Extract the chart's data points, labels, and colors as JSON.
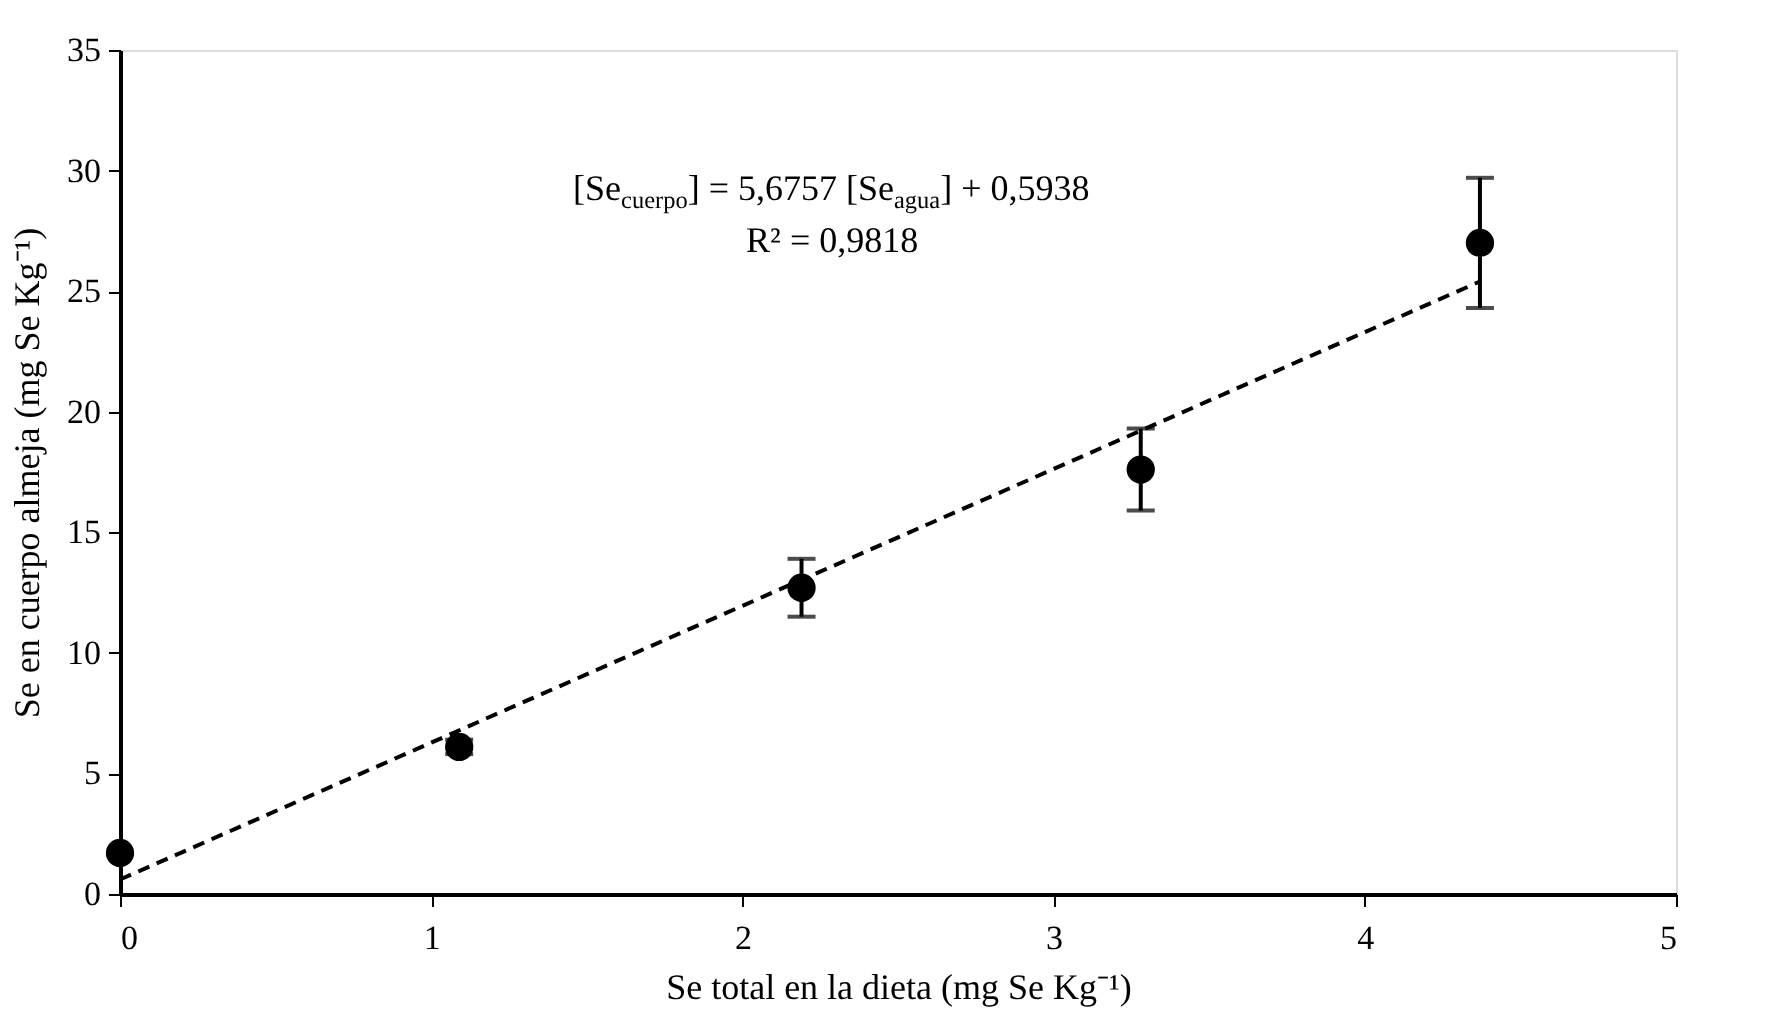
{
  "chart_data": {
    "type": "scatter",
    "xlabel": "Se total en la dieta  (mg Se Kg⁻¹)",
    "ylabel": "Se  en cuerpo almeja  (mg  Se  Kg⁻¹)",
    "xlim": [
      0,
      5
    ],
    "xticks": [
      0,
      1,
      2,
      3,
      4,
      5
    ],
    "ylim": [
      0,
      35
    ],
    "yticks": [
      0,
      5,
      10,
      15,
      20,
      25,
      30,
      35
    ],
    "grid": false,
    "marker": "circle",
    "series": [
      {
        "color": "#000000",
        "x": [
          0,
          1.09,
          2.19,
          3.28,
          4.37
        ],
        "values": [
          1.7,
          6.1,
          12.7,
          17.6,
          27.0
        ],
        "errors": [
          null,
          0.3,
          1.2,
          1.7,
          2.7
        ]
      },
      {
        "type": "line",
        "color": "#000000",
        "line_style": "dashed",
        "marker": "none",
        "x": [
          0,
          4.37
        ],
        "values": [
          0.6,
          25.4
        ]
      }
    ],
    "annotations": [
      "[Se$_{cuerpo}$] = 5,6757 [Se$_{agua}$]  + 0,5938",
      "R² = 0,9818"
    ]
  }
}
